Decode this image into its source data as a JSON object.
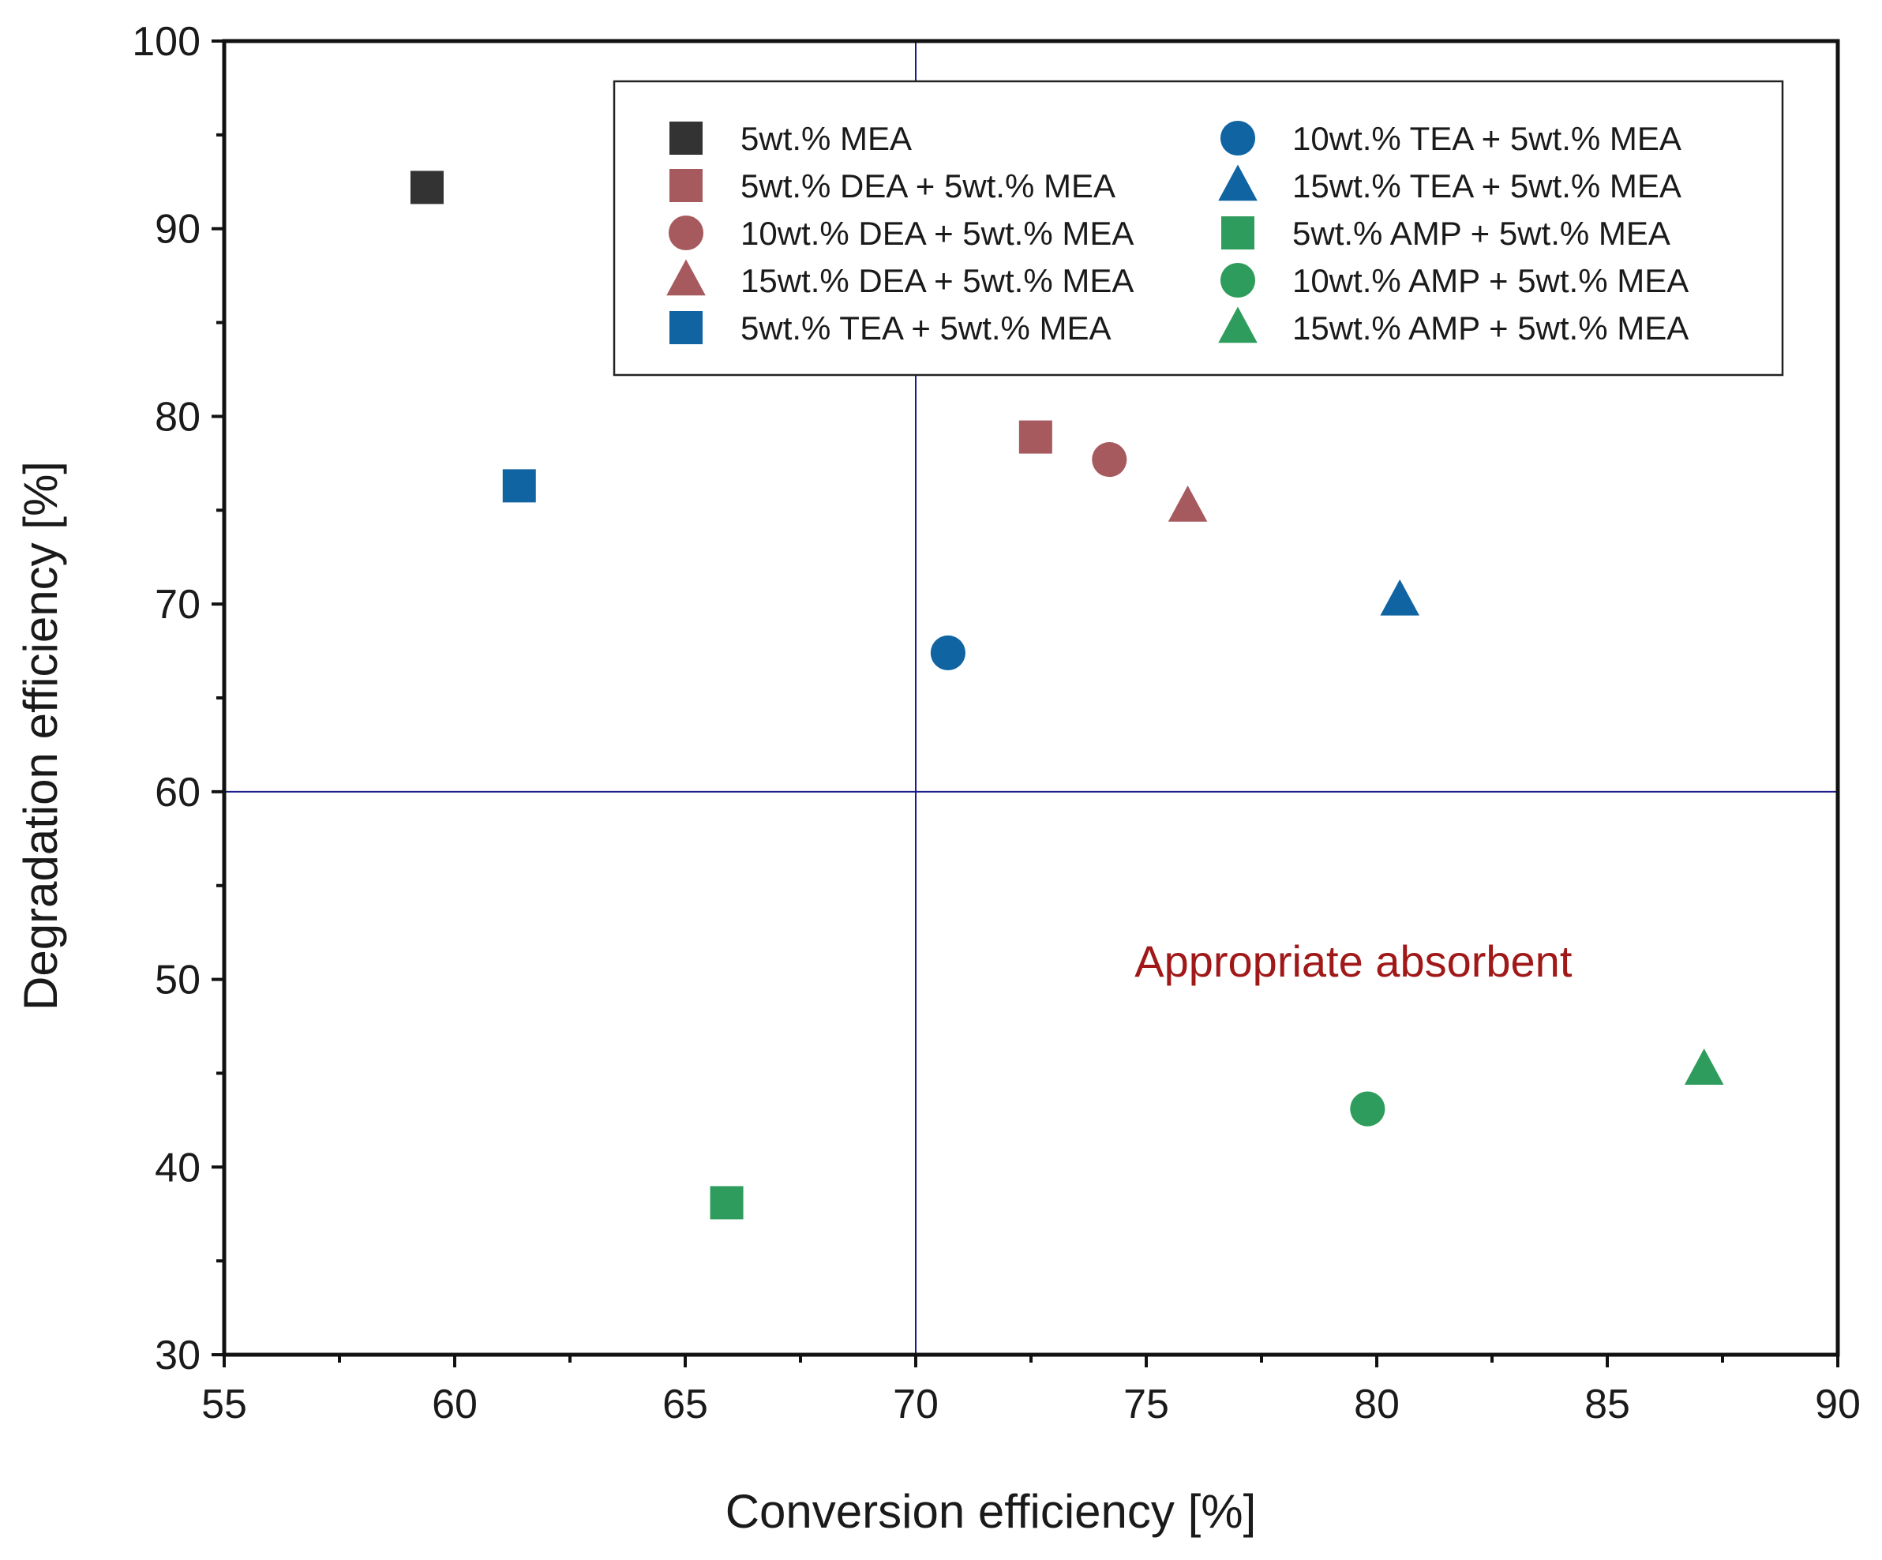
{
  "chart_data": {
    "type": "scatter",
    "title": "",
    "xlabel": "Conversion efficiency [%]",
    "ylabel": "Degradation efficiency [%]",
    "xlim": [
      55,
      90
    ],
    "ylim": [
      30,
      100
    ],
    "xticks": [
      55,
      60,
      65,
      70,
      75,
      80,
      85,
      90
    ],
    "yticks": [
      30,
      40,
      50,
      60,
      70,
      80,
      90,
      100
    ],
    "grid": false,
    "legend_position": "top-right",
    "reference_lines": {
      "x": 70,
      "y": 60,
      "color": "#1b1b8a"
    },
    "annotation": {
      "text": "Appropriate absorbent",
      "x": 79.8,
      "y": 51,
      "color": "#a01818"
    },
    "series": [
      {
        "name": "5wt.% MEA",
        "marker": "square",
        "color": "#333333",
        "x": 59.4,
        "y": 92.2
      },
      {
        "name": "5wt.% DEA + 5wt.% MEA",
        "marker": "square",
        "color": "#a65a5e",
        "x": 72.6,
        "y": 78.9
      },
      {
        "name": "10wt.% DEA + 5wt.% MEA",
        "marker": "circle",
        "color": "#a65a5e",
        "x": 74.2,
        "y": 77.7
      },
      {
        "name": "15wt.% DEA + 5wt.% MEA",
        "marker": "triangle",
        "color": "#a65a5e",
        "x": 75.9,
        "y": 75.2
      },
      {
        "name": "5wt.% TEA + 5wt.% MEA",
        "marker": "square",
        "color": "#0f64a1",
        "x": 61.4,
        "y": 76.3
      },
      {
        "name": "10wt.% TEA + 5wt.% MEA",
        "marker": "circle",
        "color": "#0f64a1",
        "x": 70.7,
        "y": 67.4
      },
      {
        "name": "15wt.% TEA + 5wt.% MEA",
        "marker": "triangle",
        "color": "#0f64a1",
        "x": 80.5,
        "y": 70.2
      },
      {
        "name": "5wt.% AMP + 5wt.% MEA",
        "marker": "square",
        "color": "#2e9c5c",
        "x": 65.9,
        "y": 38.1
      },
      {
        "name": "10wt.% AMP + 5wt.% MEA",
        "marker": "circle",
        "color": "#2e9c5c",
        "x": 79.8,
        "y": 43.1
      },
      {
        "name": "15wt.% AMP + 5wt.% MEA",
        "marker": "triangle",
        "color": "#2e9c5c",
        "x": 87.1,
        "y": 45.2
      }
    ]
  }
}
